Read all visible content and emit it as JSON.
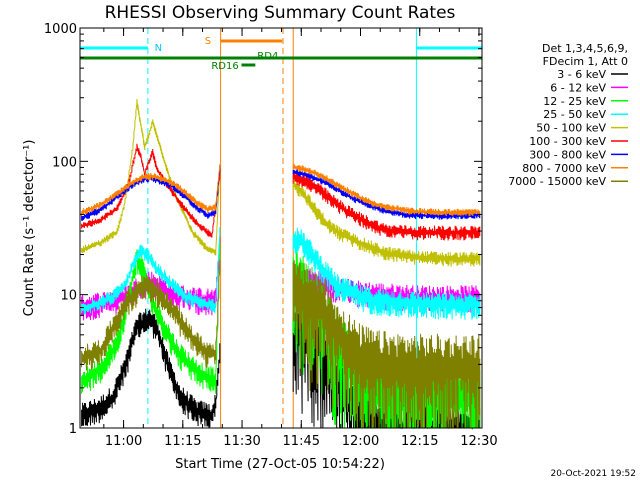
{
  "chart_data": {
    "type": "line",
    "title": "RHESSI Observing Summary Count Rates",
    "xlabel": "Start Time (27-Oct-05 10:54:22)",
    "ylabel": "Count Rate (s⁻¹ detector⁻¹)",
    "ylog": true,
    "ylim": [
      1,
      1000
    ],
    "xlim_minutes": [
      -5.4,
      96.4
    ],
    "x_unit": "minutes after 10:54:22 shown as clock time",
    "x_tick_labels": [
      "11:00",
      "11:15",
      "11:30",
      "11:45",
      "12:00",
      "12:15",
      "12:30"
    ],
    "y_tick_labels": [
      "1",
      "10",
      "100",
      "1000"
    ],
    "legend_header": [
      "Det 1,3,4,5,6,9,",
      "FDecim 1, Att 0"
    ],
    "series": [
      {
        "name": "3 - 6 keV",
        "color": "#000000",
        "night_level": 0.5,
        "before": [
          [
            -5.0,
            1.3
          ],
          [
            0,
            1.5
          ],
          [
            3,
            1.8
          ],
          [
            6,
            3
          ],
          [
            9,
            6
          ],
          [
            12,
            7
          ],
          [
            14,
            6
          ],
          [
            17,
            3
          ],
          [
            20,
            1.8
          ],
          [
            24,
            1.4
          ],
          [
            28,
            1.3
          ],
          [
            29,
            1.6
          ],
          [
            30,
            4
          ]
        ],
        "after": [
          [
            48.6,
            5
          ],
          [
            50,
            7
          ],
          [
            53,
            6
          ],
          [
            56,
            4.5
          ],
          [
            59,
            3
          ],
          [
            62,
            2
          ],
          [
            66,
            1.6
          ],
          [
            70,
            1.2
          ],
          [
            75,
            1.0
          ],
          [
            90,
            1.0
          ],
          [
            96,
            1.0
          ]
        ]
      },
      {
        "name": "6 - 12 keV",
        "color": "#ff00ff",
        "before": [
          [
            -5.0,
            8.5
          ],
          [
            0,
            9
          ],
          [
            4,
            9.5
          ],
          [
            8,
            11
          ],
          [
            10,
            12
          ],
          [
            12,
            13
          ],
          [
            14,
            12.5
          ],
          [
            17,
            11
          ],
          [
            21,
            10
          ],
          [
            26,
            9.5
          ],
          [
            29,
            9.5
          ],
          [
            30,
            25
          ]
        ],
        "after": [
          [
            48.6,
            15
          ],
          [
            52,
            14
          ],
          [
            56,
            12.5
          ],
          [
            60,
            11.5
          ],
          [
            64,
            11
          ],
          [
            70,
            10.5
          ],
          [
            80,
            10
          ],
          [
            90,
            10
          ],
          [
            96,
            10
          ]
        ]
      },
      {
        "name": "12 - 25 keV",
        "color": "#00ff00",
        "before": [
          [
            -5.0,
            2.3
          ],
          [
            0,
            3
          ],
          [
            4,
            4.5
          ],
          [
            7,
            10
          ],
          [
            9,
            20
          ],
          [
            11,
            15
          ],
          [
            13,
            9
          ],
          [
            16,
            6
          ],
          [
            19,
            4
          ],
          [
            23,
            3
          ],
          [
            27,
            2.5
          ],
          [
            29,
            2.4
          ],
          [
            30,
            22
          ]
        ],
        "after": [
          [
            48.6,
            14
          ],
          [
            51,
            13
          ],
          [
            54,
            10
          ],
          [
            57,
            7
          ],
          [
            60,
            5
          ],
          [
            63,
            3.5
          ],
          [
            66,
            2.5
          ],
          [
            70,
            2.1
          ],
          [
            80,
            2
          ],
          [
            90,
            2
          ],
          [
            96,
            2
          ]
        ]
      },
      {
        "name": "25 - 50 keV",
        "color": "#00ffff",
        "before": [
          [
            -5.0,
            8
          ],
          [
            0,
            9
          ],
          [
            3,
            10
          ],
          [
            6,
            12
          ],
          [
            8,
            17
          ],
          [
            10,
            22
          ],
          [
            12,
            20
          ],
          [
            14,
            16
          ],
          [
            17,
            13
          ],
          [
            21,
            10
          ],
          [
            25,
            9
          ],
          [
            29,
            8.5
          ],
          [
            30,
            30
          ]
        ],
        "after": [
          [
            48.6,
            28
          ],
          [
            51,
            26
          ],
          [
            54,
            20
          ],
          [
            57,
            15
          ],
          [
            60,
            12
          ],
          [
            63,
            11
          ],
          [
            66,
            10
          ],
          [
            70,
            9.5
          ],
          [
            80,
            9
          ],
          [
            90,
            8.8
          ],
          [
            96,
            8.8
          ]
        ]
      },
      {
        "name": "50 - 100 keV",
        "color": "#c0c000",
        "before": [
          [
            -5.0,
            22
          ],
          [
            0,
            25
          ],
          [
            4,
            30
          ],
          [
            6,
            50
          ],
          [
            8,
            130
          ],
          [
            9,
            280
          ],
          [
            10,
            190
          ],
          [
            11,
            130
          ],
          [
            12,
            160
          ],
          [
            13,
            200
          ],
          [
            14,
            160
          ],
          [
            16,
            100
          ],
          [
            19,
            55
          ],
          [
            23,
            30
          ],
          [
            27,
            22
          ],
          [
            29,
            21
          ],
          [
            30,
            90
          ]
        ],
        "after": [
          [
            48.6,
            70
          ],
          [
            51,
            60
          ],
          [
            54,
            45
          ],
          [
            57,
            35
          ],
          [
            60,
            30
          ],
          [
            63,
            27
          ],
          [
            67,
            24
          ],
          [
            72,
            21
          ],
          [
            80,
            19.5
          ],
          [
            90,
            19
          ],
          [
            96,
            19
          ]
        ]
      },
      {
        "name": "100 - 300 keV",
        "color": "#ff0000",
        "before": [
          [
            -5.0,
            33
          ],
          [
            0,
            37
          ],
          [
            4,
            45
          ],
          [
            7,
            70
          ],
          [
            9,
            130
          ],
          [
            10,
            110
          ],
          [
            11,
            80
          ],
          [
            12,
            100
          ],
          [
            13,
            120
          ],
          [
            14,
            90
          ],
          [
            17,
            65
          ],
          [
            21,
            45
          ],
          [
            25,
            33
          ],
          [
            28,
            28
          ],
          [
            30,
            80
          ]
        ],
        "after": [
          [
            48.6,
            80
          ],
          [
            52,
            72
          ],
          [
            56,
            60
          ],
          [
            60,
            48
          ],
          [
            64,
            40
          ],
          [
            68,
            35
          ],
          [
            72,
            31
          ],
          [
            80,
            30
          ],
          [
            90,
            30
          ],
          [
            96,
            30
          ]
        ]
      },
      {
        "name": "300 - 800 keV",
        "color": "#0000ff",
        "before": [
          [
            -5.0,
            38
          ],
          [
            0,
            44
          ],
          [
            4,
            55
          ],
          [
            8,
            68
          ],
          [
            11,
            75
          ],
          [
            13,
            75
          ],
          [
            15,
            72
          ],
          [
            18,
            66
          ],
          [
            21,
            56
          ],
          [
            24,
            46
          ],
          [
            27,
            40
          ],
          [
            29,
            42
          ],
          [
            30,
            90
          ]
        ],
        "after": [
          [
            48.6,
            85
          ],
          [
            52,
            80
          ],
          [
            56,
            72
          ],
          [
            60,
            62
          ],
          [
            64,
            53
          ],
          [
            68,
            47
          ],
          [
            72,
            43
          ],
          [
            78,
            40
          ],
          [
            86,
            39.5
          ],
          [
            96,
            40
          ]
        ]
      },
      {
        "name": "800 - 7000 keV",
        "color": "#ff8000",
        "before": [
          [
            -5.0,
            42
          ],
          [
            0,
            48
          ],
          [
            4,
            58
          ],
          [
            8,
            70
          ],
          [
            11,
            78
          ],
          [
            13,
            78
          ],
          [
            15,
            76
          ],
          [
            18,
            70
          ],
          [
            21,
            60
          ],
          [
            24,
            50
          ],
          [
            27,
            44
          ],
          [
            29,
            46
          ],
          [
            30,
            95
          ]
        ],
        "after": [
          [
            48.6,
            92
          ],
          [
            52,
            88
          ],
          [
            56,
            78
          ],
          [
            60,
            67
          ],
          [
            64,
            57
          ],
          [
            68,
            50
          ],
          [
            72,
            46
          ],
          [
            78,
            43
          ],
          [
            86,
            42
          ],
          [
            96,
            42
          ]
        ]
      },
      {
        "name": "7000 - 15000 keV",
        "color": "#808000",
        "before": [
          [
            -5.0,
            3.5
          ],
          [
            0,
            4
          ],
          [
            3,
            6
          ],
          [
            6,
            9
          ],
          [
            9,
            11
          ],
          [
            11,
            12.5
          ],
          [
            13,
            12
          ],
          [
            15,
            10
          ],
          [
            18,
            8
          ],
          [
            21,
            6
          ],
          [
            24,
            4.5
          ],
          [
            27,
            3.8
          ],
          [
            29,
            3.8
          ],
          [
            30,
            18
          ]
        ],
        "after": [
          [
            48.6,
            12
          ],
          [
            52,
            11
          ],
          [
            56,
            9
          ],
          [
            59,
            6.5
          ],
          [
            62,
            5
          ],
          [
            65,
            4
          ],
          [
            70,
            3.5
          ],
          [
            80,
            3.3
          ],
          [
            90,
            3.3
          ],
          [
            96,
            3.3
          ]
        ]
      }
    ],
    "data_gap_minutes": [
      30,
      48.6
    ],
    "status_bars": [
      {
        "label": "N",
        "color": "#00ffff",
        "segments": [
          [
            -5.4,
            11.8
          ],
          [
            79.8,
            96.4
          ]
        ]
      },
      {
        "label": "S",
        "color": "#ff8000",
        "segments": [
          [
            30.2,
            45.8
          ]
        ]
      },
      {
        "label": "RD4",
        "color": "#008000",
        "segments": [
          [
            -5.4,
            96.4
          ]
        ]
      },
      {
        "label": "RD16",
        "color": "#008000",
        "segments": [
          [
            35.5,
            39.0
          ]
        ]
      }
    ],
    "vlines": [
      {
        "color": "#00ffff",
        "style": "solid",
        "x": [
          -5.4,
          79.8
        ]
      },
      {
        "color": "#00ffff",
        "style": "dashed",
        "x": [
          11.8,
          96.4
        ]
      },
      {
        "color": "#ff8000",
        "style": "solid",
        "x": [
          30.2,
          48.6
        ]
      },
      {
        "color": "#ff8000",
        "style": "dashed",
        "x": [
          46.0
        ]
      }
    ],
    "timestamp": "20-Oct-2021 19:52"
  }
}
